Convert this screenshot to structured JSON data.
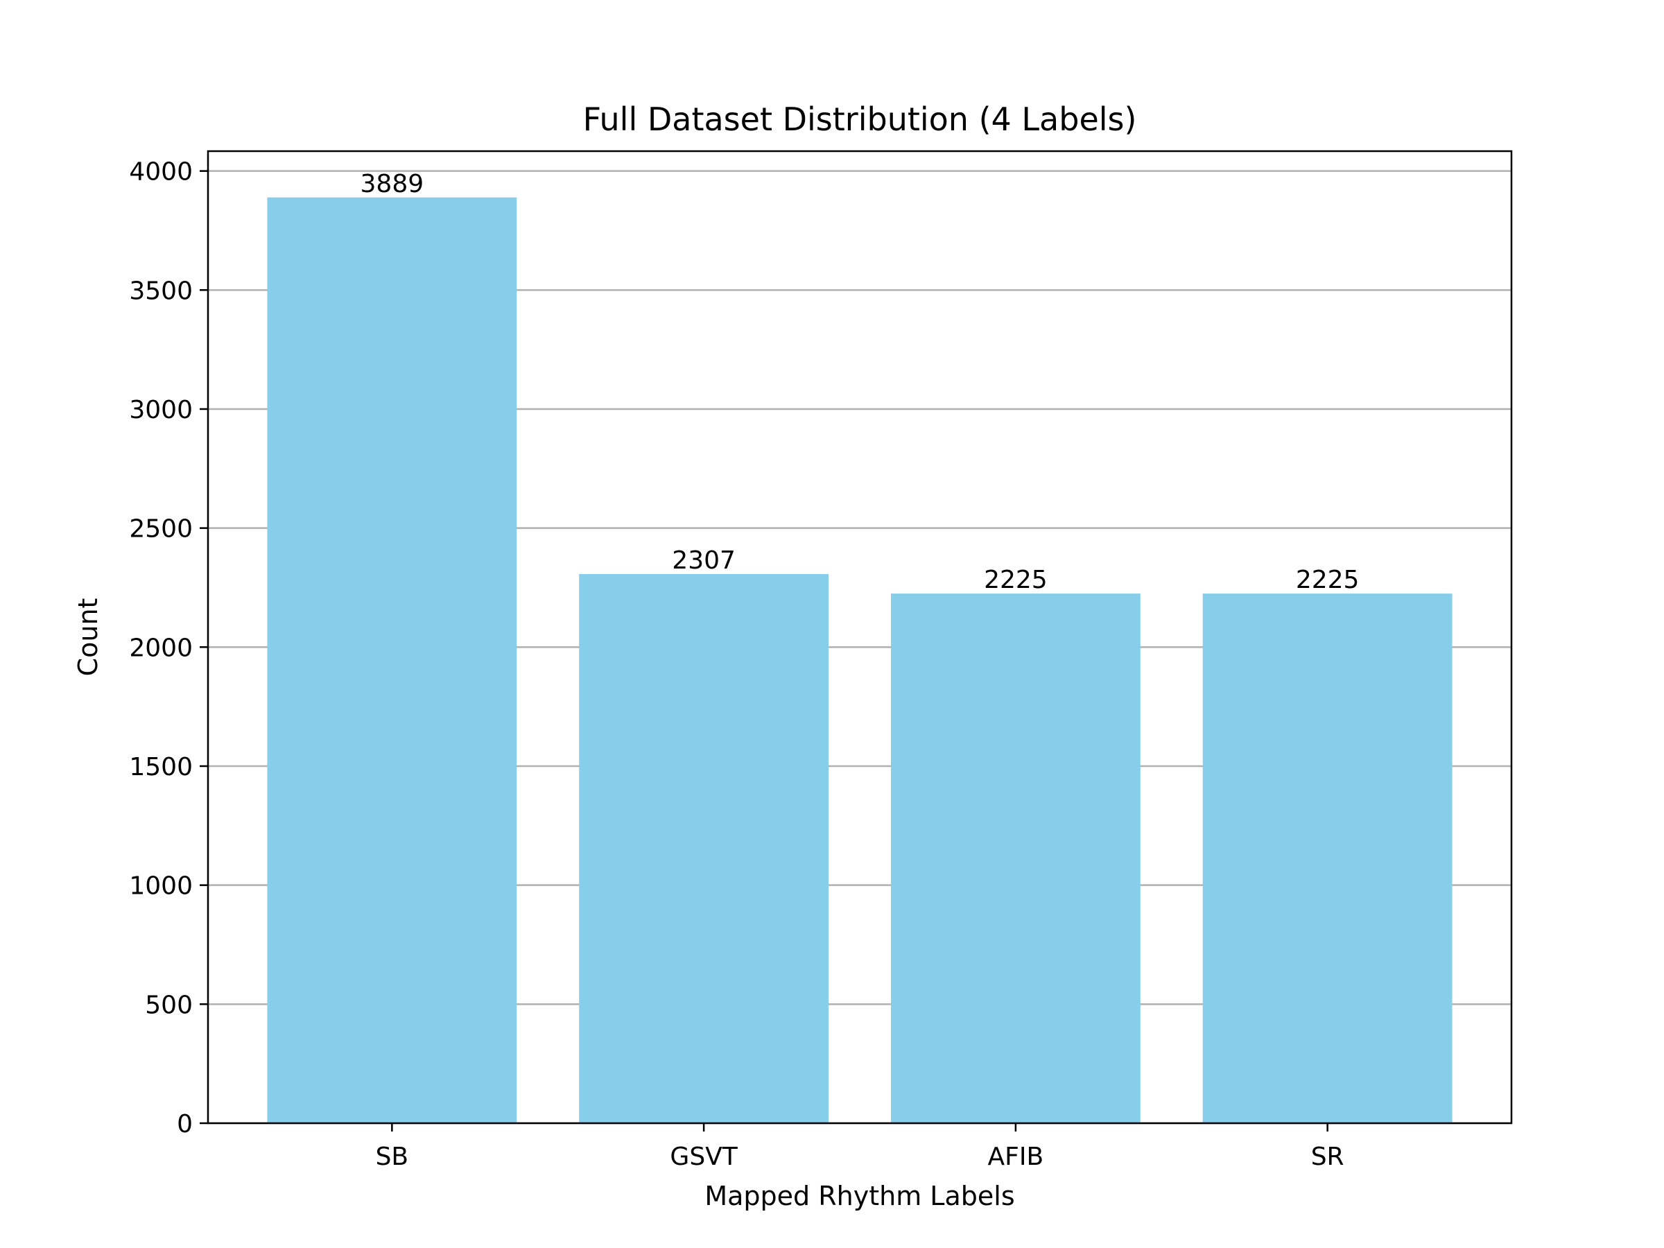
{
  "chart_data": {
    "type": "bar",
    "title": "Full Dataset Distribution (4 Labels)",
    "xlabel": "Mapped Rhythm Labels",
    "ylabel": "Count",
    "categories": [
      "SB",
      "GSVT",
      "AFIB",
      "SR"
    ],
    "values": [
      3889,
      2307,
      2225,
      2225
    ],
    "data_labels": [
      "3889",
      "2307",
      "2225",
      "2225"
    ],
    "ylim": [
      0,
      4083.45
    ],
    "yticks": [
      0,
      500,
      1000,
      1500,
      2000,
      2500,
      3000,
      3500,
      4000
    ],
    "ytick_labels": [
      "0",
      "500",
      "1000",
      "1500",
      "2000",
      "2500",
      "3000",
      "3500",
      "4000"
    ],
    "grid": "y",
    "legend": "none",
    "colors": {
      "bar": "#87ceeb",
      "grid": "#b0b0b0",
      "axis": "#000000",
      "text": "#000000"
    }
  }
}
